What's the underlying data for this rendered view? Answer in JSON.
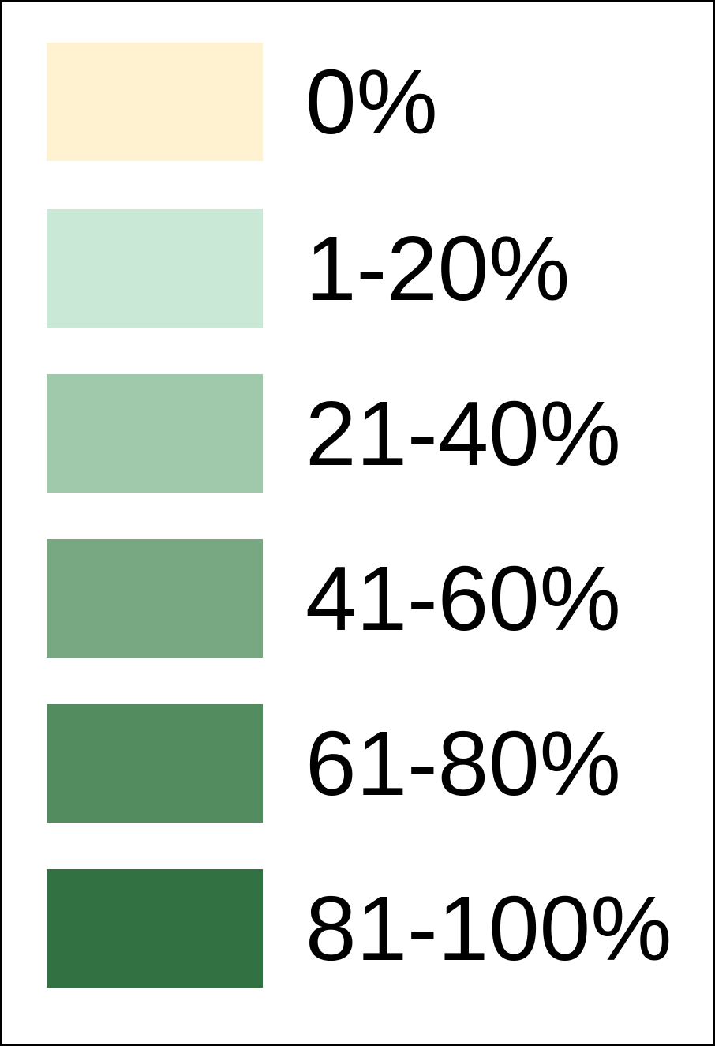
{
  "legend": {
    "items": [
      {
        "label": "0%",
        "color": "#FFF2D0"
      },
      {
        "label": "1-20%",
        "color": "#C9E8D6"
      },
      {
        "label": "21-40%",
        "color": "#A0C9AC"
      },
      {
        "label": "41-60%",
        "color": "#78A882"
      },
      {
        "label": "61-80%",
        "color": "#528C5F"
      },
      {
        "label": "81-100%",
        "color": "#317142"
      }
    ]
  }
}
